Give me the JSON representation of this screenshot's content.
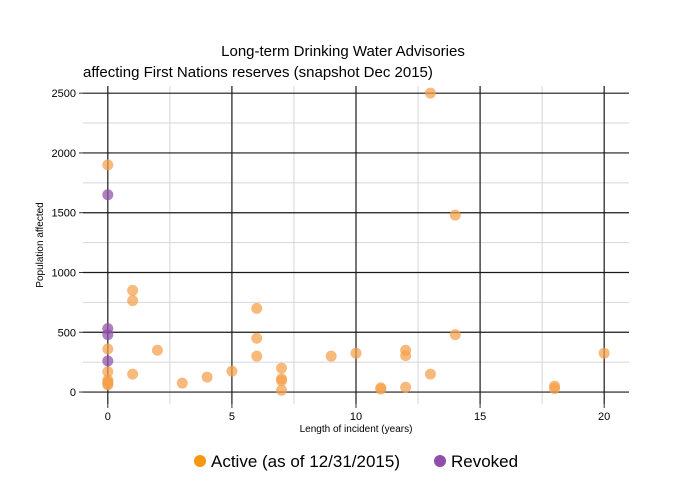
{
  "chart_data": {
    "type": "scatter",
    "title_line1": "Long-term Drinking Water Advisories",
    "title_line2": "affecting First Nations reserves (snapshot Dec 2015)",
    "xlabel": "Length of incident (years)",
    "ylabel": "Population affected",
    "xlim": [
      -1,
      21
    ],
    "ylim": [
      -100,
      2560
    ],
    "x_ticks": [
      0,
      5,
      10,
      15,
      20
    ],
    "y_ticks": [
      0,
      500,
      1000,
      1500,
      2000,
      2500
    ],
    "grid": true,
    "legend_position": "bottom",
    "series": [
      {
        "name": "Active (as of 12/31/2015)",
        "color": "#f5a04a",
        "legend_color": "#f5980f",
        "points": [
          {
            "x": 0,
            "y": 1900
          },
          {
            "x": 0,
            "y": 360
          },
          {
            "x": 0,
            "y": 170
          },
          {
            "x": 0,
            "y": 100
          },
          {
            "x": 0,
            "y": 85
          },
          {
            "x": 0,
            "y": 70
          },
          {
            "x": 0,
            "y": 60
          },
          {
            "x": 1,
            "y": 850
          },
          {
            "x": 1,
            "y": 765
          },
          {
            "x": 1,
            "y": 150
          },
          {
            "x": 2,
            "y": 350
          },
          {
            "x": 3,
            "y": 75
          },
          {
            "x": 4,
            "y": 125
          },
          {
            "x": 5,
            "y": 175
          },
          {
            "x": 6,
            "y": 700
          },
          {
            "x": 6,
            "y": 450
          },
          {
            "x": 6,
            "y": 300
          },
          {
            "x": 7,
            "y": 200
          },
          {
            "x": 7,
            "y": 110
          },
          {
            "x": 7,
            "y": 95
          },
          {
            "x": 7,
            "y": 15
          },
          {
            "x": 9,
            "y": 300
          },
          {
            "x": 10,
            "y": 325
          },
          {
            "x": 11,
            "y": 35
          },
          {
            "x": 11,
            "y": 25
          },
          {
            "x": 12,
            "y": 350
          },
          {
            "x": 12,
            "y": 305
          },
          {
            "x": 12,
            "y": 40
          },
          {
            "x": 13,
            "y": 2500
          },
          {
            "x": 13,
            "y": 150
          },
          {
            "x": 14,
            "y": 1480
          },
          {
            "x": 14,
            "y": 480
          },
          {
            "x": 18,
            "y": 50
          },
          {
            "x": 18,
            "y": 30
          },
          {
            "x": 20,
            "y": 325
          }
        ]
      },
      {
        "name": "Revoked",
        "color": "#8f4fa8",
        "legend_color": "#8f4fa8",
        "points": [
          {
            "x": 0,
            "y": 1650
          },
          {
            "x": 0,
            "y": 530
          },
          {
            "x": 0,
            "y": 480
          },
          {
            "x": 0,
            "y": 260
          }
        ]
      }
    ]
  }
}
